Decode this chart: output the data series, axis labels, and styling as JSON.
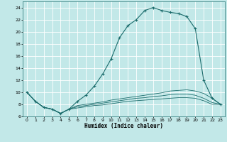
{
  "title": "",
  "xlabel": "Humidex (Indice chaleur)",
  "bg_color": "#c2e8e8",
  "grid_color": "#ffffff",
  "line_color": "#1a6b6b",
  "xlim": [
    -0.5,
    23.5
  ],
  "ylim": [
    6,
    25
  ],
  "xticks": [
    0,
    1,
    2,
    3,
    4,
    5,
    6,
    7,
    8,
    9,
    10,
    11,
    12,
    13,
    14,
    15,
    16,
    17,
    18,
    19,
    20,
    21,
    22,
    23
  ],
  "yticks": [
    6,
    8,
    10,
    12,
    14,
    16,
    18,
    20,
    22,
    24
  ],
  "main_curve_x": [
    0,
    1,
    2,
    3,
    4,
    5,
    6,
    7,
    8,
    9,
    10,
    11,
    12,
    13,
    14,
    15,
    16,
    17,
    18,
    19,
    20,
    21,
    22,
    23
  ],
  "main_curve_y": [
    10,
    8.5,
    7.5,
    7.2,
    6.5,
    7.2,
    8.5,
    9.5,
    11,
    13,
    15.5,
    19,
    21,
    22,
    23.5,
    24,
    23.5,
    23.2,
    23,
    22.5,
    20.5,
    12,
    9,
    8
  ],
  "lower_curves": [
    [
      10,
      8.5,
      7.5,
      7.2,
      6.5,
      7.2,
      7.8,
      8.0,
      8.2,
      8.4,
      8.7,
      8.9,
      9.1,
      9.3,
      9.5,
      9.7,
      9.9,
      10.2,
      10.3,
      10.4,
      10.2,
      9.8,
      9.0,
      8.0
    ],
    [
      10,
      8.5,
      7.5,
      7.2,
      6.5,
      7.2,
      7.6,
      7.8,
      8.0,
      8.2,
      8.4,
      8.6,
      8.8,
      9.0,
      9.1,
      9.3,
      9.4,
      9.6,
      9.7,
      9.7,
      9.5,
      9.0,
      8.3,
      8.0
    ],
    [
      10,
      8.5,
      7.5,
      7.2,
      6.5,
      7.2,
      7.4,
      7.6,
      7.8,
      7.9,
      8.1,
      8.3,
      8.5,
      8.6,
      8.7,
      8.8,
      8.9,
      9.0,
      9.1,
      9.1,
      9.0,
      8.6,
      8.0,
      8.0
    ]
  ],
  "xlabel_fontsize": 5.5,
  "tick_fontsize": 4.5,
  "marker_size": 2.0
}
